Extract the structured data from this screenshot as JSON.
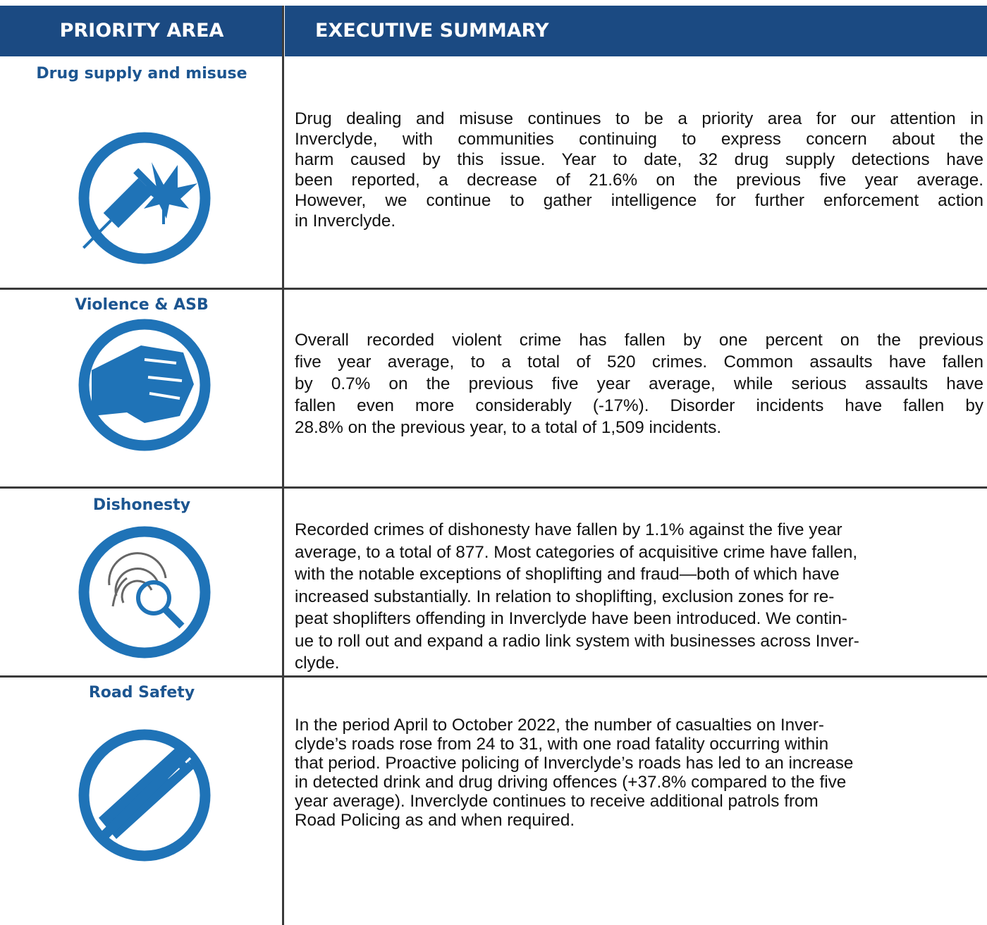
{
  "header": {
    "priority_area": "PRIORITY AREA",
    "executive_summary": "EXECUTIVE SUMMARY"
  },
  "rows": [
    {
      "title": "Drug supply and misuse",
      "summary": [
        "Drug dealing and misuse continues to be a priority area for our attention in",
        "Inverclyde, with communities continuing to express concern about the",
        "harm caused by this issue. Year to date, 32 drug supply detections have",
        "been reported, a decrease of 21.6% on the previous five year average.",
        "However, we continue to gather intelligence for further enforcement action",
        "in Inverclyde."
      ]
    },
    {
      "title": "Violence & ASB",
      "summary": [
        "Overall recorded violent crime has fallen by one percent on the previous",
        "five year average, to a total of 520 crimes. Common assaults have fallen",
        "by 0.7% on the previous five year average, while serious assaults have",
        "fallen even more considerably (-17%). Disorder incidents have fallen by",
        "28.8% on the previous year, to a total of 1,509 incidents."
      ]
    },
    {
      "title": "Dishonesty",
      "summary": [
        "Recorded crimes of dishonesty have fallen by 1.1% against the five year",
        "average, to a total of 877. Most categories of acquisitive crime have fallen,",
        "with the notable exceptions of shoplifting and fraud—both of which have",
        "increased substantially. In relation to shoplifting, exclusion zones for re-",
        "peat shoplifters offending in Inverclyde have been introduced. We contin-",
        "ue to roll out and expand a radio link system with businesses across Inver-",
        "clyde."
      ]
    },
    {
      "title": "Road Safety",
      "summary": [
        "In the period April to October 2022, the number of casualties on Inver-",
        "clyde’s roads rose from 24 to 31, with one road fatality occurring within",
        "that period. Proactive policing of Inverclyde’s roads has led to an increase",
        "in detected drink and drug driving offences (+37.8% compared to the five",
        "year average). Inverclyde continues to receive additional patrols from",
        "Road Policing as and when required."
      ]
    }
  ]
}
